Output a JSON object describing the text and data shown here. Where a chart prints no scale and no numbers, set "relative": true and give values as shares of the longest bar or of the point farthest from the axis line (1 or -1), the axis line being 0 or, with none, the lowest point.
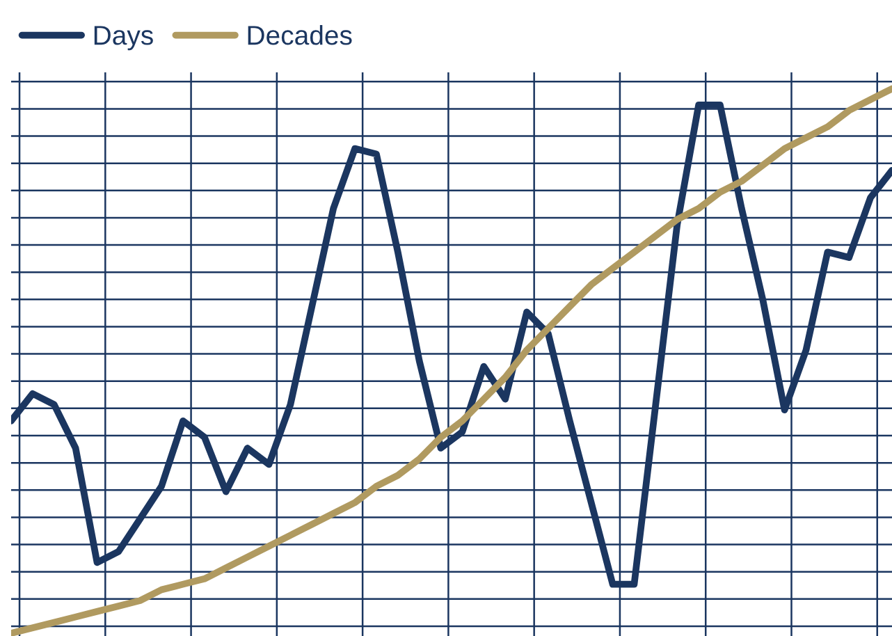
{
  "chart_data": {
    "type": "line",
    "relative": true,
    "grid": true,
    "legend": "top left",
    "line_style": "solid",
    "categories": [
      null,
      null,
      null,
      null,
      null,
      null,
      null,
      null,
      null,
      null,
      null,
      null,
      null,
      null,
      null,
      null,
      null,
      null,
      null,
      null,
      null,
      null,
      null,
      null,
      null,
      null,
      null,
      null,
      null,
      null,
      null,
      null,
      null,
      null,
      null,
      null,
      null,
      null,
      null,
      null,
      null,
      null
    ],
    "series": [
      {
        "name": "Days",
        "color": "#1b3660",
        "values": [
          0.39,
          0.44,
          0.42,
          0.34,
          0.13,
          0.15,
          0.21,
          0.27,
          0.39,
          0.36,
          0.26,
          0.34,
          0.31,
          0.42,
          0.6,
          0.78,
          0.89,
          0.88,
          0.7,
          0.5,
          0.34,
          0.37,
          0.49,
          0.43,
          0.59,
          0.55,
          0.39,
          0.24,
          0.09,
          0.09,
          0.42,
          0.75,
          0.97,
          0.97,
          0.78,
          0.61,
          0.41,
          0.52,
          0.7,
          0.69,
          0.8,
          0.85
        ]
      },
      {
        "name": "Decades",
        "color": "#b09a60",
        "values": [
          0.0,
          0.01,
          0.02,
          0.03,
          0.04,
          0.05,
          0.06,
          0.08,
          0.09,
          0.1,
          0.12,
          0.14,
          0.16,
          0.18,
          0.2,
          0.22,
          0.24,
          0.27,
          0.29,
          0.32,
          0.36,
          0.39,
          0.43,
          0.47,
          0.52,
          0.56,
          0.6,
          0.64,
          0.67,
          0.7,
          0.73,
          0.76,
          0.78,
          0.81,
          0.83,
          0.86,
          0.89,
          0.91,
          0.93,
          0.96,
          0.98,
          1.0
        ]
      }
    ]
  }
}
